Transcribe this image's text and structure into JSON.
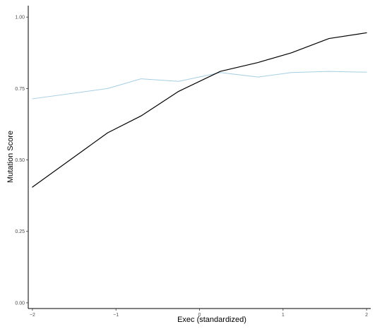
{
  "chart_data": {
    "type": "line",
    "xlabel": "Exec (standardized)",
    "ylabel": "Mutation Score",
    "xlim": [
      -2.05,
      2.05
    ],
    "ylim": [
      -0.02,
      1.04
    ],
    "x_ticks": [
      -2,
      -1,
      0,
      1,
      2
    ],
    "x_tick_labels": [
      "−2",
      "−1",
      "0",
      "1",
      "2"
    ],
    "y_ticks": [
      0.0,
      0.25,
      0.5,
      0.75,
      1.0
    ],
    "y_tick_labels": [
      "0.00",
      "0.25",
      "0.50",
      "0.75",
      "1.00"
    ],
    "grid": false,
    "legend": "none",
    "series": [
      {
        "color": "#a6cee3",
        "x": [
          -2.0,
          -1.1,
          -0.7,
          -0.25,
          0.25,
          0.7,
          1.1,
          1.55,
          2.0
        ],
        "y": [
          0.714,
          0.75,
          0.784,
          0.775,
          0.806,
          0.79,
          0.806,
          0.81,
          0.807
        ]
      },
      {
        "color": "#000000",
        "x": [
          -2.0,
          -1.1,
          -0.7,
          -0.25,
          0.25,
          0.7,
          1.1,
          1.55,
          2.0
        ],
        "y": [
          0.405,
          0.595,
          0.654,
          0.74,
          0.81,
          0.841,
          0.875,
          0.925,
          0.945
        ]
      }
    ]
  }
}
